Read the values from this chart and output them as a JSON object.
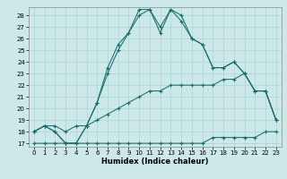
{
  "xlabel": "Humidex (Indice chaleur)",
  "bg_color": "#cce8e8",
  "grid_color": "#aad4d4",
  "line_color": "#1a6b6b",
  "xlim": [
    -0.5,
    23.5
  ],
  "ylim": [
    16.7,
    28.7
  ],
  "yticks": [
    17,
    18,
    19,
    20,
    21,
    22,
    23,
    24,
    25,
    26,
    27,
    28
  ],
  "xticks": [
    0,
    1,
    2,
    3,
    4,
    5,
    6,
    7,
    8,
    9,
    10,
    11,
    12,
    13,
    14,
    15,
    16,
    17,
    18,
    19,
    20,
    21,
    22,
    23
  ],
  "line_flat": [
    17.0,
    17.0,
    17.0,
    17.0,
    17.0,
    17.0,
    17.0,
    17.0,
    17.0,
    17.0,
    17.0,
    17.0,
    17.0,
    17.0,
    17.0,
    17.0,
    17.0,
    17.5,
    17.5,
    17.5,
    17.5,
    17.5,
    18.0,
    18.0
  ],
  "line_grad": [
    18.0,
    18.5,
    18.5,
    18.0,
    18.5,
    18.5,
    19.0,
    19.5,
    20.0,
    20.5,
    21.0,
    21.5,
    21.5,
    22.0,
    22.0,
    22.0,
    22.0,
    22.0,
    22.5,
    22.5,
    23.0,
    21.5,
    21.5,
    19.0
  ],
  "line_main": [
    18.0,
    18.5,
    18.0,
    17.0,
    17.0,
    18.5,
    20.5,
    23.0,
    25.0,
    26.5,
    28.0,
    28.5,
    27.0,
    28.5,
    27.5,
    26.0,
    25.5,
    23.5,
    23.5,
    24.0,
    23.0,
    21.5,
    21.5,
    19.0
  ],
  "line_peak": [
    18.0,
    18.5,
    18.0,
    17.0,
    17.0,
    18.5,
    20.5,
    23.5,
    25.5,
    26.5,
    28.5,
    28.5,
    26.5,
    28.5,
    28.0,
    26.0,
    25.5,
    23.5,
    23.5,
    24.0,
    23.0,
    21.5,
    21.5,
    19.0
  ]
}
